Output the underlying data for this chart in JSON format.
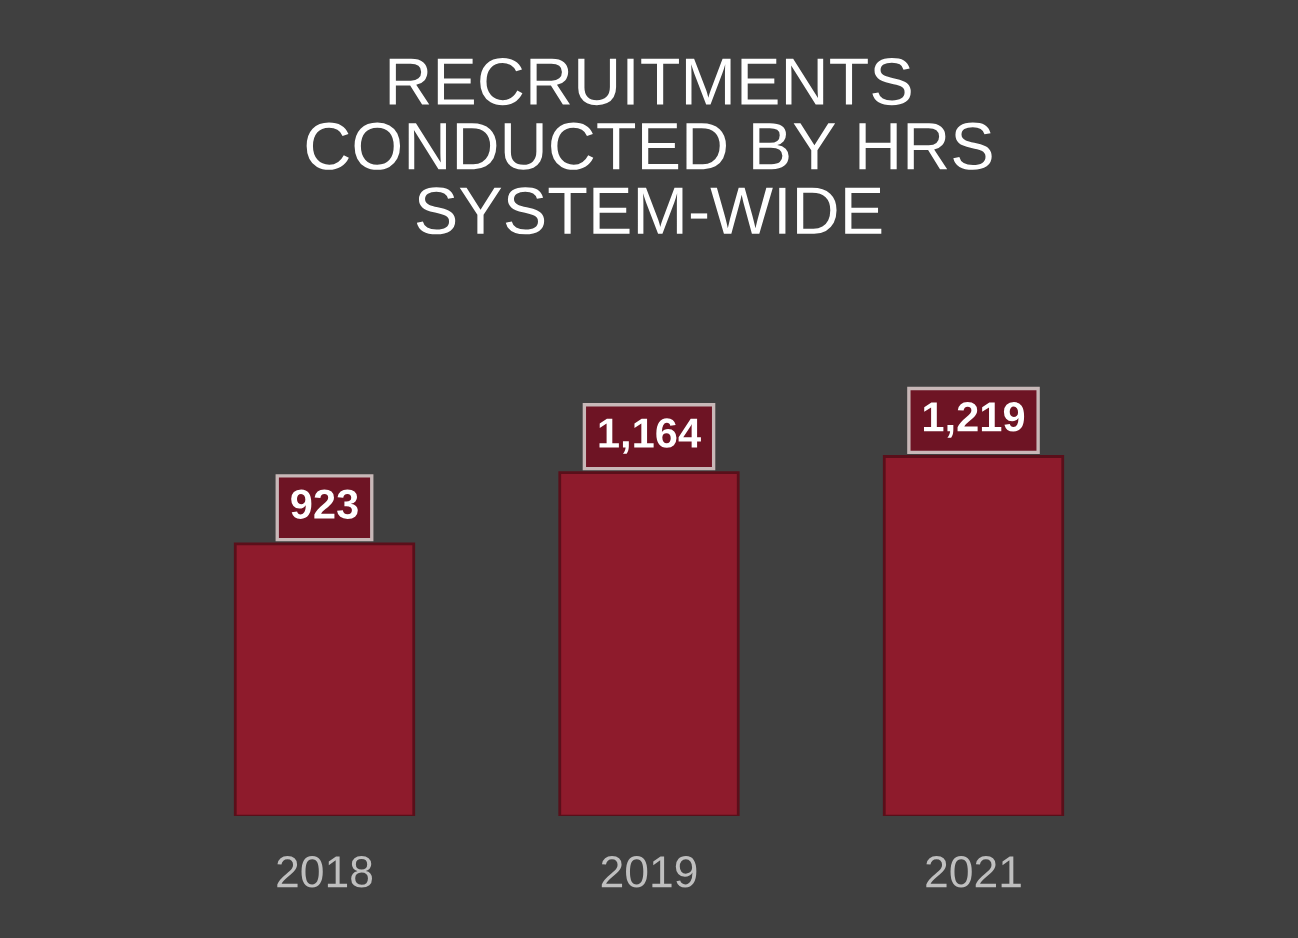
{
  "chart_data": {
    "type": "bar",
    "title": "RECRUITMENTS\nCONDUCTED BY HRS\nSYSTEM-WIDE",
    "categories": [
      "2018",
      "2019",
      "2021"
    ],
    "values": [
      923,
      1164,
      1219
    ],
    "value_labels": [
      "923",
      "1,164",
      "1,219"
    ],
    "color": "#8e1b2c",
    "grid": false,
    "legend": false
  }
}
